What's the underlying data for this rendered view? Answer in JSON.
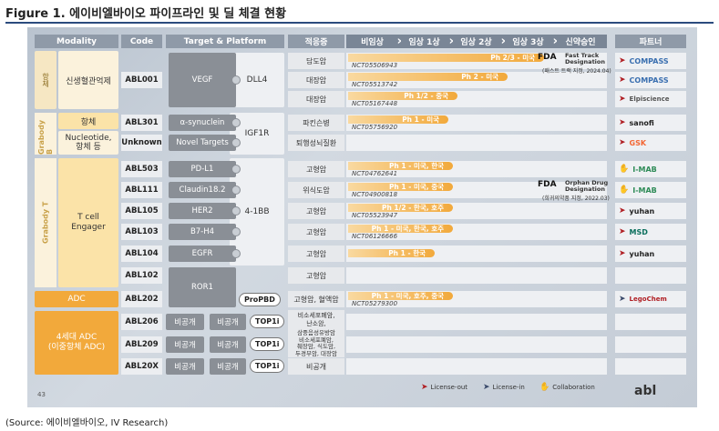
{
  "figure_title": "Figure 1. 에이비엘바이오 파이프라인 및 딜 체결 현황",
  "source": "(Source: 에이비엘바이오, IV Research)",
  "headers": {
    "modality": "Modality",
    "code": "Code",
    "target_platform": "Target & Platform",
    "indication": "적응증",
    "phases": [
      "비임상",
      "임상 1상",
      "임상 2상",
      "임상 3상",
      "신약승인"
    ],
    "partner": "파트너"
  },
  "modalities": {
    "antibody_vertical": "항체",
    "antibody": "신생혈관억제",
    "grabody_b_label": "Grabody B",
    "grabody_b_1": "항체",
    "grabody_b_2": "Nucleotide,\n항체 등",
    "grabody_t_label": "Grabody T",
    "grabody_t": "T cell\nEngager",
    "adc": "ADC",
    "adc4": "4세대 ADC\n(이중항체 ADC)"
  },
  "rows": [
    {
      "code": "ABL001",
      "target": "VEGF",
      "indication": "담도암",
      "bar": "Ph 2/3 - 미국",
      "nct": "NCT05506943",
      "partner": "COMPASS"
    },
    {
      "code": "",
      "target": "",
      "indication": "대장암",
      "bar": "Ph 2 - 미국",
      "nct": "NCT05513742",
      "partner": "COMPASS"
    },
    {
      "code": "",
      "target": "",
      "indication": "대장암",
      "bar": "Ph 1/2 - 중국",
      "nct": "NCT05167448",
      "partner": "Elpiscience"
    },
    {
      "code": "ABL301",
      "target": "α-synuclein",
      "indication": "파킨슨병",
      "bar": "Ph 1 - 미국",
      "nct": "NCT05756920",
      "partner": "sanofi"
    },
    {
      "code": "Unknown",
      "target": "Novel Targets",
      "indication": "퇴행성뇌질환",
      "bar": "",
      "nct": "",
      "partner": "GSK"
    },
    {
      "code": "ABL503",
      "target": "PD-L1",
      "indication": "고형암",
      "bar": "Ph 1 - 미국, 한국",
      "nct": "NCT04762641",
      "partner": "I-MAB"
    },
    {
      "code": "ABL111",
      "target": "Claudin18.2",
      "indication": "위식도암",
      "bar": "Ph 1 - 미국, 중국",
      "nct": "NCT04900818",
      "partner": "I-MAB"
    },
    {
      "code": "ABL105",
      "target": "HER2",
      "indication": "고형암",
      "bar": "Ph 1/2 - 한국, 호주",
      "nct": "NCT05523947",
      "partner": "yuhan"
    },
    {
      "code": "ABL103",
      "target": "B7-H4",
      "indication": "고형암",
      "bar": "Ph 1 - 미국, 한국, 호주",
      "nct": "NCT06126666",
      "partner": "MSD"
    },
    {
      "code": "ABL104",
      "target": "EGFR",
      "indication": "고형암",
      "bar": "Ph 1 - 한국",
      "nct": "",
      "partner": "yuhan"
    },
    {
      "code": "ABL102",
      "target": "",
      "indication": "고형암",
      "bar": "",
      "nct": "",
      "partner": ""
    },
    {
      "code": "ABL202",
      "target": "ROR1",
      "indication": "고형암, 혈액암",
      "bar": "Ph 1 - 미국, 호주, 중국",
      "nct": "NCT05279300",
      "partner": "LegoChem"
    },
    {
      "code": "ABL206",
      "target": "비공개",
      "indication": "비소세포폐암,\n난소암,",
      "bar": "",
      "nct": "",
      "partner": ""
    },
    {
      "code": "ABL209",
      "target": "비공개",
      "indication": "삼중음성유방암\n비소세포폐암,\n췌장암, 식도암,\n두경부암, 대장암",
      "bar": "",
      "nct": "",
      "partner": ""
    },
    {
      "code": "ABL20X",
      "target": "비공개",
      "indication": "비공개",
      "bar": "",
      "nct": "",
      "partner": ""
    }
  ],
  "platforms": {
    "dll4": "DLL4",
    "igf1r": "IGF1R",
    "cd137": "4-1BB",
    "propbd": "ProPBD",
    "top1i": "TOP1i",
    "undisclosed": "비공개"
  },
  "fda": {
    "fast_track": "Fast Track\nDesignation",
    "fast_track_note": "(패스트 트랙 지정, 2024.04)",
    "orphan": "Orphan Drug\nDesignation",
    "orphan_note": "(희귀의약품 지정, 2022.03)",
    "fda_mark": "FDA"
  },
  "legend": {
    "license_out": "License-out",
    "license_in": "License-in",
    "collaboration": "Collaboration"
  },
  "page_number": "43",
  "logo": "abl",
  "colors": {
    "header": "#8f9aa8",
    "bar_end": "#f2a93b",
    "accent_gold": "#c9a24a"
  }
}
